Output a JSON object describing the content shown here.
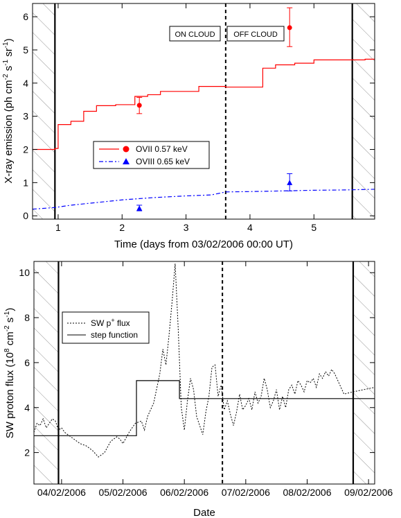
{
  "chart_data": [
    {
      "type": "line",
      "xlabel": "Time (days from 03/02/2006 00:00 UT)",
      "ylabel_main": "X-ray emission (ph cm",
      "ylabel_sup1": "-2",
      "ylabel_mid1": " s",
      "ylabel_sup2": "-1",
      "ylabel_mid2": " sr",
      "ylabel_sup3": "-1",
      "ylabel_end": ")",
      "xlim": [
        0.6,
        5.95
      ],
      "ylim": [
        -0.1,
        6.4
      ],
      "xticks": [
        1,
        2,
        3,
        4,
        5
      ],
      "yticks": [
        0,
        1,
        2,
        3,
        4,
        5,
        6
      ],
      "on_cloud_label": "ON CLOUD",
      "off_cloud_label": "OFF CLOUD",
      "hatched_regions": [
        [
          0.6,
          0.95
        ],
        [
          5.6,
          5.95
        ]
      ],
      "solid_vlines": [
        0.95,
        5.6
      ],
      "dashed_vline": 3.62,
      "legend": [
        {
          "name": "OVII 0.57 keV",
          "color": "#ff0000"
        },
        {
          "name": "OVIII 0.65 keV",
          "color": "#0000ff"
        }
      ],
      "series": [
        {
          "name": "OVII 0.57 keV",
          "style": "step",
          "color": "#ff0000",
          "x": [
            0.6,
            0.95,
            1.0,
            1.2,
            1.4,
            1.6,
            1.9,
            2.2,
            2.4,
            2.6,
            3.0,
            3.2,
            3.62,
            4.2,
            4.4,
            4.7,
            5.0,
            5.8,
            5.95
          ],
          "y": [
            2.0,
            2.03,
            2.75,
            2.85,
            3.15,
            3.32,
            3.35,
            3.6,
            3.65,
            3.75,
            3.75,
            3.9,
            3.88,
            4.45,
            4.55,
            4.6,
            4.7,
            4.72,
            4.68
          ]
        },
        {
          "name": "OVIII 0.65 keV",
          "style": "dashdot",
          "color": "#0000ff",
          "x": [
            0.6,
            0.95,
            1.2,
            1.6,
            2.0,
            2.5,
            3.0,
            3.4,
            3.62,
            4.0,
            4.5,
            5.0,
            5.5,
            5.95
          ],
          "y": [
            0.2,
            0.25,
            0.32,
            0.4,
            0.48,
            0.55,
            0.6,
            0.63,
            0.72,
            0.73,
            0.75,
            0.77,
            0.78,
            0.8
          ]
        }
      ],
      "points": [
        {
          "series": "OVII 0.57 keV",
          "marker": "circle",
          "color": "#ff0000",
          "x": 2.27,
          "y": 3.33,
          "err_low": 3.08,
          "err_high": 3.57
        },
        {
          "series": "OVII 0.57 keV",
          "marker": "circle",
          "color": "#ff0000",
          "x": 4.62,
          "y": 5.67,
          "err_low": 5.1,
          "err_high": 6.27
        },
        {
          "series": "OVIII 0.65 keV",
          "marker": "triangle",
          "color": "#0000ff",
          "x": 2.27,
          "y": 0.23,
          "err_low": 0.15,
          "err_high": 0.32
        },
        {
          "series": "OVIII 0.65 keV",
          "marker": "triangle",
          "color": "#0000ff",
          "x": 4.62,
          "y": 1.0,
          "err_low": 0.75,
          "err_high": 1.27
        }
      ]
    },
    {
      "type": "line",
      "xlabel": "Date",
      "ylabel_main": "SW proton flux (10",
      "ylabel_sup1": "8",
      "ylabel_mid1": " cm",
      "ylabel_sup2": "-2",
      "ylabel_mid2": " s",
      "ylabel_sup3": "-1",
      "ylabel_end": ")",
      "xlim": [
        3.55,
        9.1
      ],
      "ylim": [
        0.6,
        10.5
      ],
      "xticks": [
        {
          "value": 4.0,
          "label": "04/02/2006"
        },
        {
          "value": 5.0,
          "label": "05/02/2006"
        },
        {
          "value": 6.0,
          "label": "06/02/2006"
        },
        {
          "value": 7.0,
          "label": "07/02/2006"
        },
        {
          "value": 8.0,
          "label": "08/02/2006"
        },
        {
          "value": 9.0,
          "label": "09/02/2006"
        }
      ],
      "yticks": [
        2,
        4,
        6,
        8,
        10
      ],
      "hatched_regions": [
        [
          3.55,
          3.95
        ],
        [
          8.75,
          9.1
        ]
      ],
      "solid_vlines": [
        3.95,
        8.75
      ],
      "dashed_vline": 6.62,
      "legend": [
        {
          "name_main": "SW p",
          "name_sup": "+",
          "name_end": " flux",
          "style": "dotted"
        },
        {
          "name_main": "step function",
          "name_sup": "",
          "name_end": "",
          "style": "solid"
        }
      ],
      "series": [
        {
          "name": "SW p+ flux",
          "style": "dotted",
          "color": "#000000",
          "x": [
            3.55,
            3.6,
            3.65,
            3.7,
            3.75,
            3.8,
            3.85,
            3.9,
            3.95,
            4.0,
            4.05,
            4.1,
            4.2,
            4.3,
            4.4,
            4.5,
            4.6,
            4.7,
            4.8,
            4.9,
            4.95,
            5.0,
            5.1,
            5.2,
            5.3,
            5.35,
            5.4,
            5.5,
            5.6,
            5.65,
            5.7,
            5.75,
            5.8,
            5.85,
            5.9,
            5.95,
            6.0,
            6.05,
            6.1,
            6.15,
            6.2,
            6.25,
            6.3,
            6.35,
            6.4,
            6.45,
            6.5,
            6.55,
            6.6,
            6.65,
            6.7,
            6.75,
            6.8,
            6.85,
            6.9,
            6.95,
            7.0,
            7.05,
            7.1,
            7.15,
            7.2,
            7.25,
            7.3,
            7.35,
            7.4,
            7.45,
            7.5,
            7.55,
            7.6,
            7.65,
            7.7,
            7.75,
            7.8,
            7.85,
            7.9,
            7.95,
            8.0,
            8.05,
            8.1,
            8.15,
            8.2,
            8.25,
            8.3,
            8.35,
            8.4,
            8.45,
            8.5,
            8.6,
            8.75,
            9.1
          ],
          "y": [
            2.9,
            3.3,
            3.2,
            3.5,
            3.1,
            3.3,
            3.5,
            3.4,
            3.0,
            3.1,
            2.9,
            2.8,
            2.6,
            2.4,
            2.3,
            2.1,
            1.8,
            2.0,
            2.5,
            2.7,
            2.6,
            2.4,
            2.9,
            3.3,
            3.4,
            3.0,
            3.6,
            4.2,
            5.5,
            6.6,
            5.9,
            7.2,
            8.7,
            10.4,
            7.5,
            4.0,
            3.0,
            4.3,
            5.3,
            4.8,
            3.6,
            3.2,
            2.8,
            3.8,
            4.5,
            5.8,
            5.9,
            4.5,
            5.0,
            3.9,
            4.3,
            3.7,
            3.2,
            3.8,
            4.6,
            3.9,
            4.1,
            4.4,
            3.9,
            4.7,
            4.2,
            4.5,
            5.3,
            4.8,
            4.0,
            4.3,
            4.8,
            3.9,
            4.5,
            4.0,
            4.8,
            5.0,
            4.6,
            5.2,
            5.0,
            4.7,
            5.2,
            5.1,
            5.3,
            4.9,
            5.5,
            5.3,
            5.6,
            5.4,
            5.7,
            5.5,
            5.2,
            4.6,
            4.7,
            4.9
          ]
        },
        {
          "name": "step function",
          "style": "step",
          "color": "#000000",
          "x": [
            3.55,
            5.22,
            5.22,
            5.92,
            5.92,
            9.1
          ],
          "y": [
            2.75,
            2.75,
            5.2,
            5.2,
            4.4,
            4.4
          ]
        }
      ]
    }
  ]
}
